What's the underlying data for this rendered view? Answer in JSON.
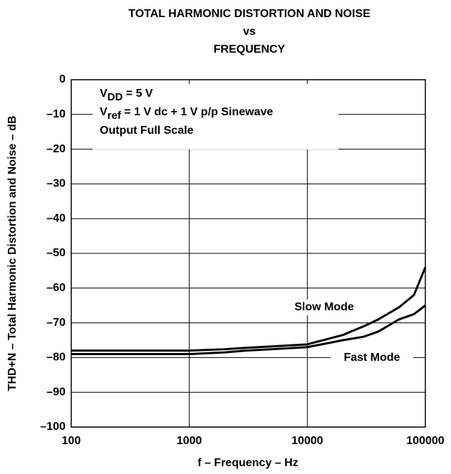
{
  "chart_data": {
    "type": "line",
    "title": [
      "TOTAL HARMONIC DISTORTION AND NOISE",
      "vs",
      "FREQUENCY"
    ],
    "xlabel": "f – Frequency – Hz",
    "ylabel": "THD+N – Total Harmonic Distortion and Noise – dB",
    "xscale": "log",
    "grid": true,
    "x": [
      100,
      1000,
      2000,
      3000,
      5000,
      10000,
      20000,
      30000,
      40000,
      60000,
      80000,
      100000
    ],
    "series": [
      {
        "name": "Slow Mode",
        "color": "#000000",
        "values": [
          -78,
          -78,
          -77.6,
          -77.2,
          -76.8,
          -76.2,
          -73.5,
          -71,
          -69,
          -65.5,
          -62,
          -54
        ]
      },
      {
        "name": "Fast Mode",
        "color": "#000000",
        "values": [
          -79,
          -79,
          -78.5,
          -78,
          -77.6,
          -77,
          -75,
          -74,
          -72.5,
          -69,
          -67.5,
          -65
        ]
      }
    ],
    "xlim": [
      100,
      100000
    ],
    "xticks": [
      100,
      1000,
      10000,
      100000
    ],
    "ylim": [
      -100,
      0
    ],
    "yticks": [
      {
        "value": -100,
        "label": "–100"
      },
      {
        "value": -90,
        "label": "–90"
      },
      {
        "value": -80,
        "label": "–80"
      },
      {
        "value": -70,
        "label": "–70"
      },
      {
        "value": -60,
        "label": "–60"
      },
      {
        "value": -50,
        "label": "–50"
      },
      {
        "value": -40,
        "label": "–40"
      },
      {
        "value": -30,
        "label": "–30"
      },
      {
        "value": -20,
        "label": "–20"
      },
      {
        "value": -10,
        "label": "–10"
      },
      0
    ],
    "annotations": [
      {
        "text": "V",
        "sub": "DD",
        "rest": " = 5 V"
      },
      {
        "text": "V",
        "sub": "ref",
        "rest": " = 1 V dc + 1 V p/p Sinewave"
      },
      {
        "text": "Output Full Scale"
      }
    ]
  }
}
